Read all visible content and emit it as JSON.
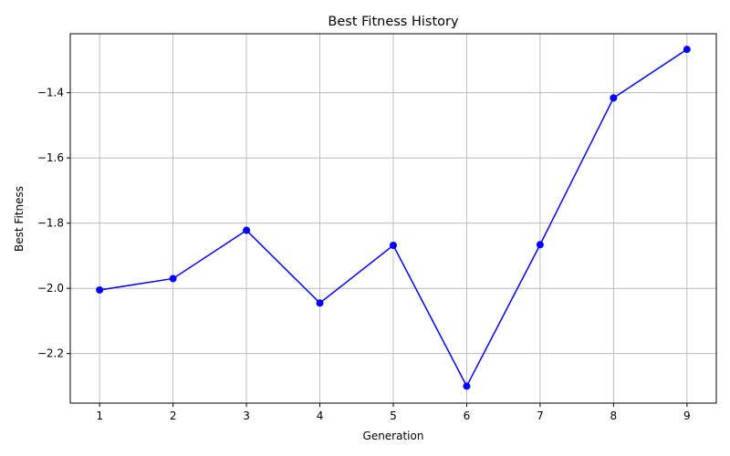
{
  "chart_data": {
    "type": "line",
    "title": "Best Fitness History",
    "xlabel": "Generation",
    "ylabel": "Best Fitness",
    "x": [
      1,
      2,
      3,
      4,
      5,
      6,
      7,
      8,
      9
    ],
    "series": [
      {
        "values": [
          -2.005,
          -1.97,
          -1.822,
          -2.045,
          -1.868,
          -2.3,
          -1.866,
          -1.416,
          -1.267
        ],
        "color": "#0000ff",
        "marker": "circle"
      }
    ],
    "xticks": [
      "1",
      "2",
      "3",
      "4",
      "5",
      "6",
      "7",
      "8",
      "9"
    ],
    "yticks": [
      "−2.2",
      "−2.0",
      "−1.8",
      "−1.6",
      "−1.4"
    ],
    "ytick_values": [
      -2.2,
      -2.0,
      -1.8,
      -1.6,
      -1.4
    ],
    "xlim": [
      0.6,
      9.4
    ],
    "ylim": [
      -2.352,
      -1.219
    ],
    "grid": true,
    "legend": "none"
  }
}
